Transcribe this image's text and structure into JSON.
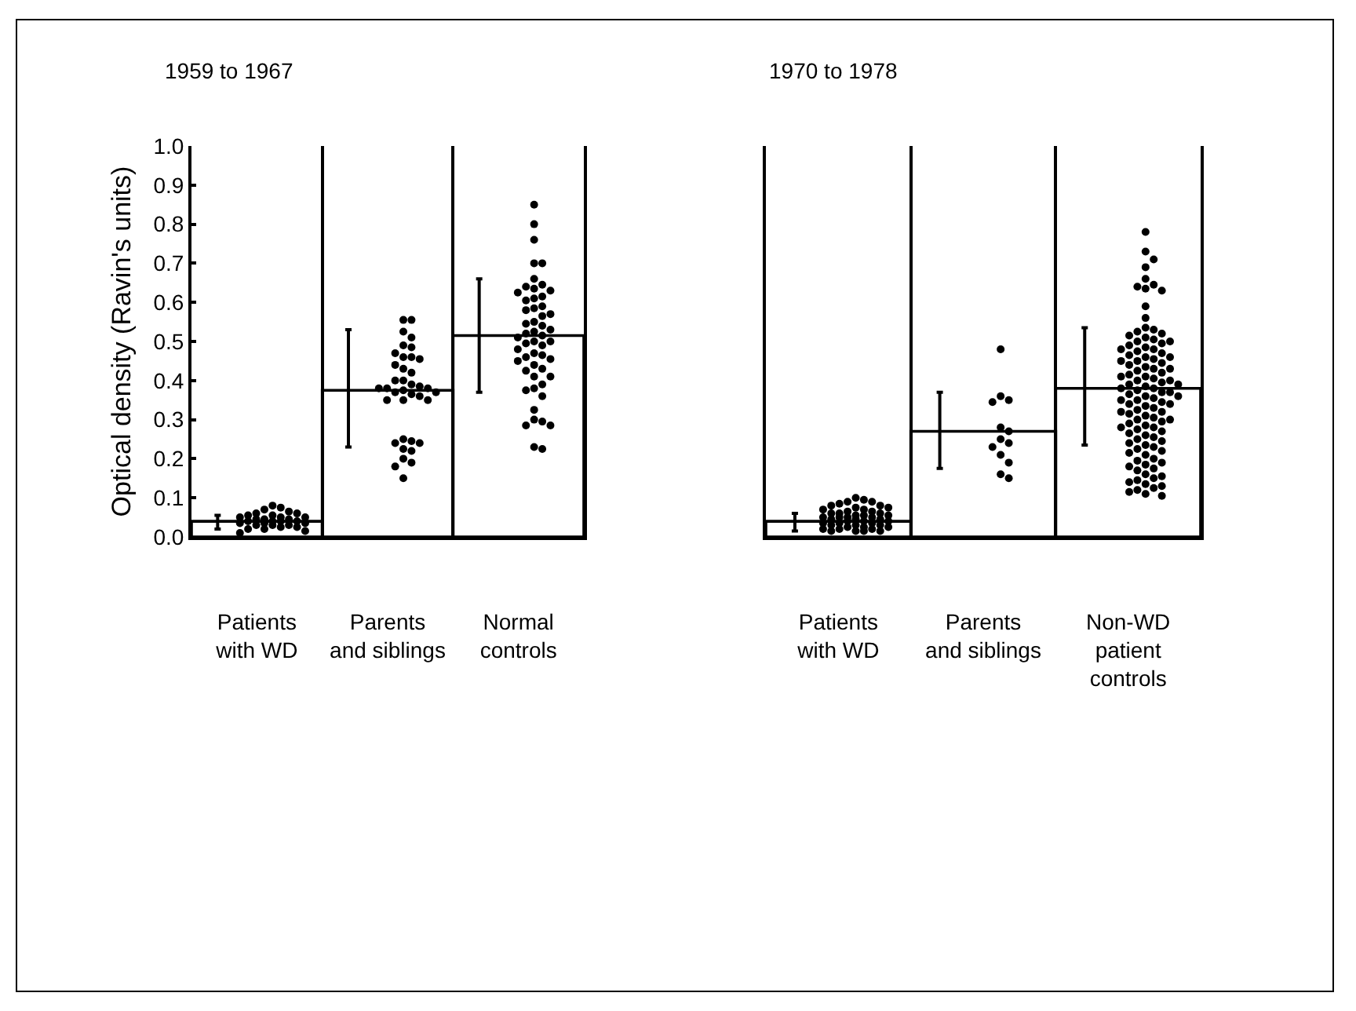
{
  "chart_data": [
    {
      "type": "scatter",
      "title": "1959 to 1967",
      "ylabel": "Optical density (Ravin's units)",
      "categories": [
        "Patients\nwith WD",
        "Parents\nand siblings",
        "Normal\ncontrols"
      ],
      "ylim": [
        0,
        1
      ],
      "yticks": [
        {
          "value": 0,
          "label": "0.0"
        },
        0.1,
        0.2,
        0.3,
        0.4,
        0.5,
        0.6,
        0.7,
        0.8,
        0.9,
        {
          "value": 1,
          "label": "1.0"
        }
      ],
      "grid": "x",
      "series": [
        {
          "type": "bar",
          "color": "#000000",
          "values": [
            0.04,
            0.375,
            0.515
          ],
          "errors": [
            [
              0.02,
              0.055
            ],
            [
              0.23,
              0.53
            ],
            [
              0.37,
              0.66
            ]
          ]
        },
        {
          "color": "#000000",
          "marker": "circle",
          "x": [
            "Patients\nwith WD",
            "Patients\nwith WD",
            "Patients\nwith WD",
            "Patients\nwith WD",
            "Patients\nwith WD",
            "Patients\nwith WD",
            "Patients\nwith WD",
            "Patients\nwith WD",
            "Patients\nwith WD",
            "Patients\nwith WD",
            "Patients\nwith WD",
            "Patients\nwith WD",
            "Patients\nwith WD",
            "Patients\nwith WD",
            "Patients\nwith WD",
            "Patients\nwith WD",
            "Patients\nwith WD",
            "Patients\nwith WD",
            "Patients\nwith WD",
            "Patients\nwith WD",
            "Patients\nwith WD",
            "Patients\nwith WD",
            "Patients\nwith WD",
            "Patients\nwith WD",
            "Patients\nwith WD",
            "Patients\nwith WD",
            "Patients\nwith WD",
            "Patients\nwith WD",
            "Patients\nwith WD",
            "Patients\nwith WD",
            "Parents\nand siblings",
            "Parents\nand siblings",
            "Parents\nand siblings",
            "Parents\nand siblings",
            "Parents\nand siblings",
            "Parents\nand siblings",
            "Parents\nand siblings",
            "Parents\nand siblings",
            "Parents\nand siblings",
            "Parents\nand siblings",
            "Parents\nand siblings",
            "Parents\nand siblings",
            "Parents\nand siblings",
            "Parents\nand siblings",
            "Parents\nand siblings",
            "Parents\nand siblings",
            "Parents\nand siblings",
            "Parents\nand siblings",
            "Parents\nand siblings",
            "Parents\nand siblings",
            "Parents\nand siblings",
            "Parents\nand siblings",
            "Parents\nand siblings",
            "Parents\nand siblings",
            "Parents\nand siblings",
            "Parents\nand siblings",
            "Parents\nand siblings",
            "Parents\nand siblings",
            "Parents\nand siblings",
            "Parents\nand siblings",
            "Parents\nand siblings",
            "Parents\nand siblings",
            "Parents\nand siblings",
            "Parents\nand siblings",
            "Parents\nand siblings",
            "Parents\nand siblings",
            "Parents\nand siblings",
            "Parents\nand siblings",
            "Normal\ncontrols",
            "Normal\ncontrols",
            "Normal\ncontrols",
            "Normal\ncontrols",
            "Normal\ncontrols",
            "Normal\ncontrols",
            "Normal\ncontrols",
            "Normal\ncontrols",
            "Normal\ncontrols",
            "Normal\ncontrols",
            "Normal\ncontrols",
            "Normal\ncontrols",
            "Normal\ncontrols",
            "Normal\ncontrols",
            "Normal\ncontrols",
            "Normal\ncontrols",
            "Normal\ncontrols",
            "Normal\ncontrols",
            "Normal\ncontrols",
            "Normal\ncontrols",
            "Normal\ncontrols",
            "Normal\ncontrols",
            "Normal\ncontrols",
            "Normal\ncontrols",
            "Normal\ncontrols",
            "Normal\ncontrols",
            "Normal\ncontrols",
            "Normal\ncontrols",
            "Normal\ncontrols",
            "Normal\ncontrols",
            "Normal\ncontrols",
            "Normal\ncontrols",
            "Normal\ncontrols",
            "Normal\ncontrols",
            "Normal\ncontrols",
            "Normal\ncontrols",
            "Normal\ncontrols",
            "Normal\ncontrols",
            "Normal\ncontrols",
            "Normal\ncontrols",
            "Normal\ncontrols",
            "Normal\ncontrols",
            "Normal\ncontrols",
            "Normal\ncontrols",
            "Normal\ncontrols",
            "Normal\ncontrols",
            "Normal\ncontrols",
            "Normal\ncontrols",
            "Normal\ncontrols",
            "Normal\ncontrols",
            "Normal\ncontrols",
            "Normal\ncontrols",
            "Normal\ncontrols"
          ],
          "values": [
            0.08,
            0.075,
            0.07,
            0.065,
            0.06,
            0.06,
            0.055,
            0.055,
            0.05,
            0.05,
            0.05,
            0.045,
            0.045,
            0.045,
            0.04,
            0.04,
            0.04,
            0.04,
            0.035,
            0.035,
            0.035,
            0.03,
            0.03,
            0.03,
            0.025,
            0.025,
            0.02,
            0.02,
            0.015,
            0.01,
            0.555,
            0.555,
            0.525,
            0.51,
            0.49,
            0.485,
            0.47,
            0.46,
            0.46,
            0.455,
            0.44,
            0.43,
            0.42,
            0.4,
            0.4,
            0.39,
            0.385,
            0.38,
            0.38,
            0.38,
            0.375,
            0.37,
            0.37,
            0.365,
            0.36,
            0.35,
            0.35,
            0.35,
            0.25,
            0.245,
            0.24,
            0.24,
            0.225,
            0.22,
            0.2,
            0.19,
            0.18,
            0.15,
            0.85,
            0.8,
            0.76,
            0.7,
            0.7,
            0.66,
            0.645,
            0.64,
            0.635,
            0.63,
            0.625,
            0.615,
            0.61,
            0.605,
            0.59,
            0.585,
            0.58,
            0.57,
            0.565,
            0.55,
            0.545,
            0.54,
            0.53,
            0.525,
            0.52,
            0.515,
            0.51,
            0.5,
            0.5,
            0.495,
            0.49,
            0.48,
            0.47,
            0.465,
            0.46,
            0.455,
            0.45,
            0.44,
            0.43,
            0.425,
            0.41,
            0.41,
            0.39,
            0.38,
            0.375,
            0.36,
            0.325,
            0.3,
            0.295,
            0.285,
            0.285,
            0.23,
            0.225
          ]
        }
      ]
    },
    {
      "type": "scatter",
      "title": "1970 to 1978",
      "categories": [
        "Patients\nwith WD",
        "Parents\nand siblings",
        "Non-WD\npatient\ncontrols"
      ],
      "ylim": [
        0,
        1
      ],
      "tick_labels": "x",
      "grid": "x",
      "series": [
        {
          "type": "bar",
          "color": "#000000",
          "values": [
            0.04,
            0.27,
            0.38
          ],
          "errors": [
            [
              0.015,
              0.06
            ],
            [
              0.175,
              0.37
            ],
            [
              0.235,
              0.535
            ]
          ]
        },
        {
          "color": "#000000",
          "marker": "circle",
          "x": [
            "Patients\nwith WD",
            "Patients\nwith WD",
            "Patients\nwith WD",
            "Patients\nwith WD",
            "Patients\nwith WD",
            "Patients\nwith WD",
            "Patients\nwith WD",
            "Patients\nwith WD",
            "Patients\nwith WD",
            "Patients\nwith WD",
            "Patients\nwith WD",
            "Patients\nwith WD",
            "Patients\nwith WD",
            "Patients\nwith WD",
            "Patients\nwith WD",
            "Patients\nwith WD",
            "Patients\nwith WD",
            "Patients\nwith WD",
            "Patients\nwith WD",
            "Patients\nwith WD",
            "Patients\nwith WD",
            "Patients\nwith WD",
            "Patients\nwith WD",
            "Patients\nwith WD",
            "Patients\nwith WD",
            "Patients\nwith WD",
            "Patients\nwith WD",
            "Patients\nwith WD",
            "Patients\nwith WD",
            "Patients\nwith WD",
            "Patients\nwith WD",
            "Patients\nwith WD",
            "Patients\nwith WD",
            "Patients\nwith WD",
            "Patients\nwith WD",
            "Patients\nwith WD",
            "Patients\nwith WD",
            "Patients\nwith WD",
            "Patients\nwith WD",
            "Patients\nwith WD",
            "Patients\nwith WD",
            "Patients\nwith WD",
            "Patients\nwith WD",
            "Patients\nwith WD",
            "Patients\nwith WD",
            "Parents\nand siblings",
            "Parents\nand siblings",
            "Parents\nand siblings",
            "Parents\nand siblings",
            "Parents\nand siblings",
            "Parents\nand siblings",
            "Parents\nand siblings",
            "Parents\nand siblings",
            "Parents\nand siblings",
            "Parents\nand siblings",
            "Parents\nand siblings",
            "Parents\nand siblings",
            "Parents\nand siblings",
            "Non-WD\npatient\ncontrols",
            "Non-WD\npatient\ncontrols",
            "Non-WD\npatient\ncontrols",
            "Non-WD\npatient\ncontrols",
            "Non-WD\npatient\ncontrols",
            "Non-WD\npatient\ncontrols",
            "Non-WD\npatient\ncontrols",
            "Non-WD\npatient\ncontrols",
            "Non-WD\npatient\ncontrols",
            "Non-WD\npatient\ncontrols",
            "Non-WD\npatient\ncontrols",
            "Non-WD\npatient\ncontrols",
            "Non-WD\npatient\ncontrols",
            "Non-WD\npatient\ncontrols",
            "Non-WD\npatient\ncontrols",
            "Non-WD\npatient\ncontrols",
            "Non-WD\npatient\ncontrols",
            "Non-WD\npatient\ncontrols",
            "Non-WD\npatient\ncontrols",
            "Non-WD\npatient\ncontrols",
            "Non-WD\npatient\ncontrols",
            "Non-WD\npatient\ncontrols",
            "Non-WD\npatient\ncontrols",
            "Non-WD\npatient\ncontrols",
            "Non-WD\npatient\ncontrols",
            "Non-WD\npatient\ncontrols",
            "Non-WD\npatient\ncontrols",
            "Non-WD\npatient\ncontrols",
            "Non-WD\npatient\ncontrols",
            "Non-WD\npatient\ncontrols",
            "Non-WD\npatient\ncontrols",
            "Non-WD\npatient\ncontrols",
            "Non-WD\npatient\ncontrols",
            "Non-WD\npatient\ncontrols",
            "Non-WD\npatient\ncontrols",
            "Non-WD\npatient\ncontrols",
            "Non-WD\npatient\ncontrols",
            "Non-WD\npatient\ncontrols",
            "Non-WD\npatient\ncontrols",
            "Non-WD\npatient\ncontrols",
            "Non-WD\npatient\ncontrols",
            "Non-WD\npatient\ncontrols",
            "Non-WD\npatient\ncontrols",
            "Non-WD\npatient\ncontrols",
            "Non-WD\npatient\ncontrols",
            "Non-WD\npatient\ncontrols",
            "Non-WD\npatient\ncontrols",
            "Non-WD\npatient\ncontrols",
            "Non-WD\npatient\ncontrols",
            "Non-WD\npatient\ncontrols",
            "Non-WD\npatient\ncontrols",
            "Non-WD\npatient\ncontrols",
            "Non-WD\npatient\ncontrols",
            "Non-WD\npatient\ncontrols",
            "Non-WD\npatient\ncontrols",
            "Non-WD\npatient\ncontrols",
            "Non-WD\npatient\ncontrols",
            "Non-WD\npatient\ncontrols",
            "Non-WD\npatient\ncontrols",
            "Non-WD\npatient\ncontrols",
            "Non-WD\npatient\ncontrols",
            "Non-WD\npatient\ncontrols",
            "Non-WD\npatient\ncontrols",
            "Non-WD\npatient\ncontrols",
            "Non-WD\npatient\ncontrols",
            "Non-WD\npatient\ncontrols",
            "Non-WD\npatient\ncontrols",
            "Non-WD\npatient\ncontrols",
            "Non-WD\npatient\ncontrols",
            "Non-WD\npatient\ncontrols",
            "Non-WD\npatient\ncontrols",
            "Non-WD\npatient\ncontrols",
            "Non-WD\npatient\ncontrols",
            "Non-WD\npatient\ncontrols",
            "Non-WD\npatient\ncontrols",
            "Non-WD\npatient\ncontrols",
            "Non-WD\npatient\ncontrols",
            "Non-WD\npatient\ncontrols",
            "Non-WD\npatient\ncontrols",
            "Non-WD\npatient\ncontrols",
            "Non-WD\npatient\ncontrols",
            "Non-WD\npatient\ncontrols",
            "Non-WD\npatient\ncontrols",
            "Non-WD\npatient\ncontrols",
            "Non-WD\npatient\ncontrols",
            "Non-WD\npatient\ncontrols",
            "Non-WD\npatient\ncontrols",
            "Non-WD\npatient\ncontrols",
            "Non-WD\npatient\ncontrols",
            "Non-WD\npatient\ncontrols",
            "Non-WD\npatient\ncontrols",
            "Non-WD\npatient\ncontrols",
            "Non-WD\npatient\ncontrols",
            "Non-WD\npatient\ncontrols",
            "Non-WD\npatient\ncontrols",
            "Non-WD\npatient\ncontrols",
            "Non-WD\npatient\ncontrols",
            "Non-WD\npatient\ncontrols",
            "Non-WD\npatient\ncontrols",
            "Non-WD\npatient\ncontrols",
            "Non-WD\npatient\ncontrols",
            "Non-WD\npatient\ncontrols",
            "Non-WD\npatient\ncontrols",
            "Non-WD\npatient\ncontrols",
            "Non-WD\npatient\ncontrols",
            "Non-WD\npatient\ncontrols",
            "Non-WD\npatient\ncontrols",
            "Non-WD\npatient\ncontrols",
            "Non-WD\npatient\ncontrols",
            "Non-WD\npatient\ncontrols",
            "Non-WD\npatient\ncontrols",
            "Non-WD\npatient\ncontrols"
          ],
          "values": [
            0.1,
            0.095,
            0.09,
            0.09,
            0.085,
            0.08,
            0.08,
            0.075,
            0.075,
            0.07,
            0.07,
            0.065,
            0.065,
            0.06,
            0.06,
            0.06,
            0.055,
            0.055,
            0.055,
            0.05,
            0.05,
            0.05,
            0.05,
            0.045,
            0.045,
            0.045,
            0.04,
            0.04,
            0.04,
            0.035,
            0.035,
            0.035,
            0.03,
            0.03,
            0.03,
            0.025,
            0.025,
            0.025,
            0.02,
            0.02,
            0.02,
            0.015,
            0.015,
            0.015,
            0.015,
            0.48,
            0.36,
            0.35,
            0.345,
            0.28,
            0.27,
            0.25,
            0.24,
            0.23,
            0.21,
            0.19,
            0.16,
            0.15,
            0.78,
            0.73,
            0.71,
            0.69,
            0.66,
            0.645,
            0.64,
            0.635,
            0.63,
            0.59,
            0.56,
            0.535,
            0.53,
            0.525,
            0.52,
            0.515,
            0.51,
            0.505,
            0.5,
            0.5,
            0.495,
            0.49,
            0.485,
            0.48,
            0.48,
            0.475,
            0.47,
            0.465,
            0.46,
            0.46,
            0.455,
            0.45,
            0.45,
            0.445,
            0.44,
            0.435,
            0.43,
            0.43,
            0.425,
            0.42,
            0.415,
            0.41,
            0.41,
            0.405,
            0.4,
            0.4,
            0.395,
            0.39,
            0.39,
            0.385,
            0.38,
            0.38,
            0.375,
            0.37,
            0.37,
            0.365,
            0.36,
            0.36,
            0.355,
            0.35,
            0.35,
            0.345,
            0.34,
            0.34,
            0.335,
            0.33,
            0.325,
            0.32,
            0.32,
            0.315,
            0.31,
            0.305,
            0.3,
            0.3,
            0.295,
            0.29,
            0.285,
            0.28,
            0.28,
            0.275,
            0.27,
            0.265,
            0.26,
            0.255,
            0.25,
            0.245,
            0.24,
            0.235,
            0.23,
            0.225,
            0.22,
            0.215,
            0.21,
            0.2,
            0.195,
            0.19,
            0.185,
            0.18,
            0.175,
            0.17,
            0.16,
            0.155,
            0.15,
            0.145,
            0.14,
            0.135,
            0.13,
            0.125,
            0.12,
            0.115,
            0.11,
            0.105
          ]
        }
      ]
    }
  ]
}
